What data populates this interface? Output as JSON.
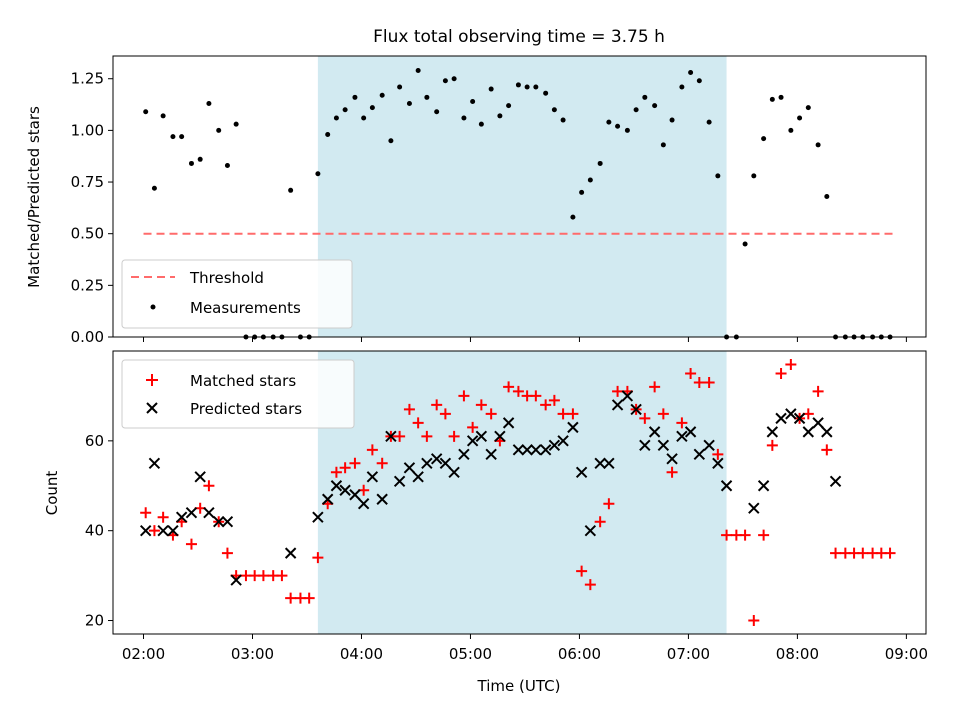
{
  "title": "Flux total observing time = 3.75 h",
  "colors": {
    "shade": "#add8e6",
    "threshold": "#ff6b6b",
    "matched": "#ff0000",
    "predicted": "#000000",
    "measurements": "#000000"
  },
  "chart_data": [
    {
      "type": "scatter",
      "ylabel": "Matched/Predicted stars",
      "xlim": [
        1.72,
        9.18
      ],
      "ylim": [
        0,
        1.36
      ],
      "yticks": [
        0,
        0.25,
        0.5,
        0.75,
        1.0,
        1.25
      ],
      "ytick_labels": [
        "0.00",
        "0.25",
        "0.50",
        "0.75",
        "1.00",
        "1.25"
      ],
      "xticks": [
        2,
        3,
        4,
        5,
        6,
        7,
        8,
        9
      ],
      "shaded_span": [
        3.6,
        7.35
      ],
      "threshold": {
        "name": "Threshold",
        "y": 0.5,
        "x": [
          2.0,
          8.9
        ]
      },
      "legend": {
        "location": "lower-left",
        "entries": [
          "Threshold",
          "Measurements"
        ]
      },
      "series": [
        {
          "name": "Measurements",
          "x": [
            2.02,
            2.1,
            2.18,
            2.27,
            2.35,
            2.44,
            2.52,
            2.6,
            2.69,
            2.77,
            2.85,
            2.94,
            3.02,
            3.1,
            3.19,
            3.27,
            3.35,
            3.44,
            3.52,
            3.6,
            3.69,
            3.77,
            3.85,
            3.94,
            4.02,
            4.1,
            4.19,
            4.27,
            4.35,
            4.44,
            4.52,
            4.6,
            4.69,
            4.77,
            4.85,
            4.94,
            5.02,
            5.1,
            5.19,
            5.27,
            5.35,
            5.44,
            5.52,
            5.6,
            5.69,
            5.77,
            5.85,
            5.94,
            6.02,
            6.1,
            6.19,
            6.27,
            6.35,
            6.44,
            6.52,
            6.6,
            6.69,
            6.77,
            6.85,
            6.94,
            7.02,
            7.1,
            7.19,
            7.27,
            7.35,
            7.44,
            7.52,
            7.6,
            7.69,
            7.77,
            7.85,
            7.94,
            8.02,
            8.1,
            8.19,
            8.27,
            8.35,
            8.44,
            8.52,
            8.6,
            8.69,
            8.77,
            8.85
          ],
          "y": [
            1.09,
            0.72,
            1.07,
            0.97,
            0.97,
            0.84,
            0.86,
            1.13,
            1.0,
            0.83,
            1.03,
            0.0,
            0.0,
            0.0,
            0.0,
            0.0,
            0.71,
            0.0,
            0.0,
            0.79,
            0.98,
            1.06,
            1.1,
            1.16,
            1.06,
            1.11,
            1.17,
            0.95,
            1.21,
            1.13,
            1.29,
            1.16,
            1.09,
            1.24,
            1.25,
            1.06,
            1.14,
            1.03,
            1.2,
            1.07,
            1.12,
            1.22,
            1.21,
            1.21,
            1.18,
            1.1,
            1.05,
            0.58,
            0.7,
            0.76,
            0.84,
            1.04,
            1.02,
            1.0,
            1.1,
            1.16,
            1.12,
            0.93,
            1.05,
            1.21,
            1.28,
            1.24,
            1.04,
            0.78,
            0.0,
            0.0,
            0.45,
            0.78,
            0.96,
            1.15,
            1.16,
            1.0,
            1.06,
            1.11,
            0.93,
            0.68,
            0.0,
            0.0,
            0.0,
            0.0,
            0.0,
            0.0,
            0.0
          ]
        }
      ]
    },
    {
      "type": "scatter",
      "xlabel": "Time (UTC)",
      "ylabel": "Count",
      "xlim": [
        1.72,
        9.18
      ],
      "ylim": [
        17,
        80
      ],
      "yticks": [
        20,
        40,
        60
      ],
      "xticks": [
        2,
        3,
        4,
        5,
        6,
        7,
        8,
        9
      ],
      "xtick_labels": [
        "02:00",
        "03:00",
        "04:00",
        "05:00",
        "06:00",
        "07:00",
        "08:00",
        "09:00"
      ],
      "shaded_span": [
        3.6,
        7.35
      ],
      "legend": {
        "location": "upper-left",
        "entries": [
          "Matched stars",
          "Predicted stars"
        ]
      },
      "series": [
        {
          "name": "Matched stars",
          "marker": "+",
          "x": [
            2.02,
            2.1,
            2.18,
            2.27,
            2.35,
            2.44,
            2.52,
            2.6,
            2.69,
            2.77,
            2.85,
            2.94,
            3.02,
            3.1,
            3.19,
            3.27,
            3.35,
            3.44,
            3.52,
            3.6,
            3.69,
            3.77,
            3.85,
            3.94,
            4.02,
            4.1,
            4.19,
            4.27,
            4.35,
            4.44,
            4.52,
            4.6,
            4.69,
            4.77,
            4.85,
            4.94,
            5.02,
            5.1,
            5.19,
            5.27,
            5.35,
            5.44,
            5.52,
            5.6,
            5.69,
            5.77,
            5.85,
            5.94,
            6.02,
            6.1,
            6.19,
            6.27,
            6.35,
            6.44,
            6.52,
            6.6,
            6.69,
            6.77,
            6.85,
            6.94,
            7.02,
            7.1,
            7.19,
            7.27,
            7.35,
            7.44,
            7.52,
            7.6,
            7.69,
            7.77,
            7.85,
            7.94,
            8.02,
            8.1,
            8.19,
            8.27,
            8.35,
            8.44,
            8.52,
            8.6,
            8.69,
            8.77,
            8.85
          ],
          "y": [
            44,
            40,
            43,
            39,
            42,
            37,
            45,
            50,
            42,
            35,
            30,
            30,
            30,
            30,
            30,
            30,
            25,
            25,
            25,
            34,
            46,
            53,
            54,
            55,
            49,
            58,
            55,
            61,
            61,
            67,
            64,
            61,
            68,
            66,
            61,
            70,
            63,
            68,
            66,
            60,
            72,
            71,
            70,
            70,
            68,
            69,
            66,
            66,
            31,
            28,
            42,
            46,
            71,
            71,
            67,
            65,
            72,
            66,
            53,
            64,
            75,
            73,
            73,
            57,
            39,
            39,
            39,
            20,
            39,
            59,
            75,
            77,
            65,
            66,
            71,
            58,
            35,
            35,
            35,
            35,
            35,
            35,
            35
          ]
        },
        {
          "name": "Predicted stars",
          "marker": "x",
          "x": [
            2.02,
            2.1,
            2.18,
            2.27,
            2.35,
            2.44,
            2.52,
            2.6,
            2.69,
            2.77,
            2.85,
            3.35,
            3.6,
            3.69,
            3.77,
            3.85,
            3.94,
            4.02,
            4.1,
            4.19,
            4.27,
            4.35,
            4.44,
            4.52,
            4.6,
            4.69,
            4.77,
            4.85,
            4.94,
            5.02,
            5.1,
            5.19,
            5.27,
            5.35,
            5.44,
            5.52,
            5.6,
            5.69,
            5.77,
            5.85,
            5.94,
            6.02,
            6.1,
            6.19,
            6.27,
            6.35,
            6.44,
            6.52,
            6.6,
            6.69,
            6.77,
            6.85,
            6.94,
            7.02,
            7.1,
            7.19,
            7.27,
            7.35,
            7.6,
            7.69,
            7.77,
            7.85,
            7.94,
            8.02,
            8.1,
            8.19,
            8.27,
            8.35
          ],
          "y": [
            40,
            55,
            40,
            40,
            43,
            44,
            52,
            44,
            42,
            42,
            29,
            35,
            43,
            47,
            50,
            49,
            48,
            46,
            52,
            47,
            61,
            51,
            54,
            52,
            55,
            56,
            55,
            53,
            57,
            60,
            61,
            57,
            61,
            64,
            58,
            58,
            58,
            58,
            59,
            60,
            63,
            53,
            40,
            55,
            55,
            68,
            70,
            67,
            59,
            62,
            59,
            56,
            61,
            62,
            57,
            59,
            55,
            50,
            45,
            50,
            62,
            65,
            66,
            65,
            62,
            64,
            62,
            51
          ]
        }
      ]
    }
  ]
}
